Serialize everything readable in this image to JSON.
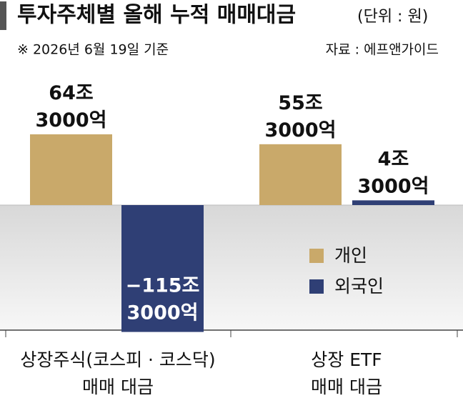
{
  "chart_data": {
    "type": "bar",
    "title": "투자주체별 올해 누적 매매대금",
    "subtitle": "(단위 : 원)",
    "note": "※ 2026년 6월 19일 기준",
    "source": "자료 : 에프앤가이드",
    "categories": [
      "상장주식(코스피 · 코스닥)\n매매 대금",
      "상장 ETF\n매매 대금"
    ],
    "series": [
      {
        "name": "개인",
        "color": "#c9a96a",
        "values": [
          64.3,
          55.3
        ],
        "value_labels": [
          "64조\n3000억",
          "55조\n3000억"
        ]
      },
      {
        "name": "외국인",
        "color": "#2f3f75",
        "values": [
          -115.3,
          4.3
        ],
        "value_labels": [
          "−115조\n3000억",
          "4조\n3000억"
        ]
      }
    ]
  }
}
